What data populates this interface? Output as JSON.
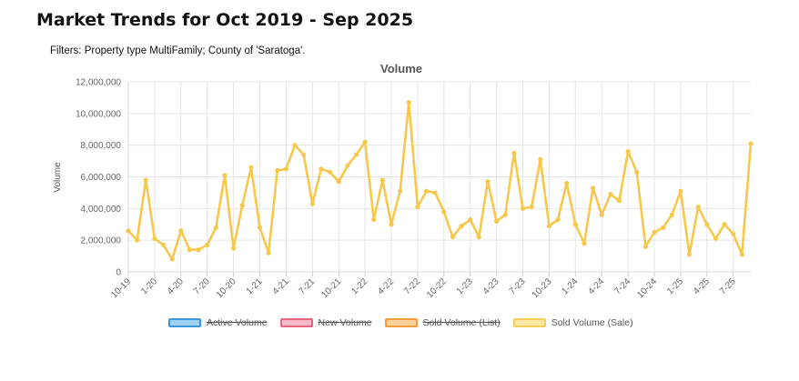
{
  "page": {
    "title": "Market Trends for Oct 2019 - Sep 2025",
    "filters": "Filters: Property type MultiFamily; County of 'Saratoga'."
  },
  "legend": [
    {
      "label": "Active Volume",
      "fill": "#9fd3f5",
      "stroke": "#3a9ad9",
      "hidden": true
    },
    {
      "label": "New Volume",
      "fill": "#f8b9c9",
      "stroke": "#e8647f",
      "hidden": true
    },
    {
      "label": "Sold Volume (List)",
      "fill": "#fbd29c",
      "stroke": "#f39c3a",
      "hidden": true
    },
    {
      "label": "Sold Volume (Sale)",
      "fill": "#fde8a6",
      "stroke": "#f6cf5b",
      "hidden": false
    }
  ],
  "chart_data": {
    "type": "line",
    "title": "Volume",
    "xlabel": "",
    "ylabel": "Volume",
    "ylim": [
      0,
      12000000
    ],
    "yticks": [
      0,
      2000000,
      4000000,
      6000000,
      8000000,
      10000000,
      12000000
    ],
    "ytick_labels": [
      "0",
      "2,000,000",
      "4,000,000",
      "6,000,000",
      "8,000,000",
      "10,000,000",
      "12,000,000"
    ],
    "xtick_labels": [
      "10-19",
      "1-20",
      "4-20",
      "7-20",
      "10-20",
      "1-21",
      "4-21",
      "7-21",
      "10-21",
      "1-22",
      "4-22",
      "7-22",
      "10-22",
      "1-23",
      "4-23",
      "7-23",
      "10-23",
      "1-24",
      "4-24",
      "7-24",
      "10-24",
      "1-25",
      "4-25",
      "7-25"
    ],
    "xtick_every": 3,
    "grid": true,
    "line_color": "#f6c94e",
    "series": [
      {
        "name": "Sold Volume (Sale)",
        "values": [
          2600000,
          2000000,
          5800000,
          2100000,
          1700000,
          800000,
          2600000,
          1400000,
          1400000,
          1700000,
          2800000,
          6100000,
          1500000,
          4200000,
          6600000,
          2800000,
          1200000,
          6400000,
          6500000,
          8000000,
          7400000,
          4300000,
          6500000,
          6300000,
          5700000,
          6700000,
          7400000,
          8200000,
          3300000,
          5800000,
          3000000,
          5100000,
          10700000,
          4100000,
          5100000,
          5000000,
          3800000,
          2200000,
          2900000,
          3300000,
          2200000,
          5700000,
          3200000,
          3600000,
          7500000,
          4000000,
          4100000,
          7100000,
          2900000,
          3300000,
          5600000,
          3000000,
          1800000,
          5300000,
          3600000,
          4900000,
          4500000,
          7600000,
          6300000,
          1600000,
          2500000,
          2800000,
          3600000,
          5100000,
          1100000,
          4100000,
          3000000,
          2100000,
          3000000,
          2400000,
          1100000,
          8100000
        ]
      }
    ]
  }
}
